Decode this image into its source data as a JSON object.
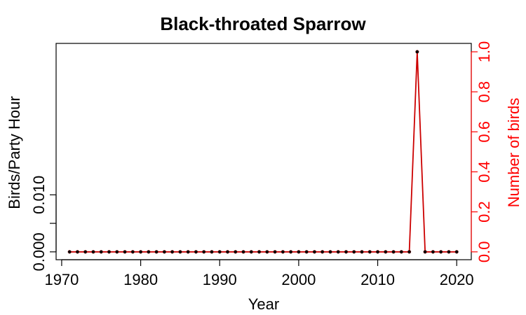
{
  "chart_data": {
    "type": "line",
    "title": "Black-throated Sparrow",
    "xlabel": "Year",
    "ylabel_left": "Birds/Party Hour",
    "ylabel_right": "Number of birds",
    "xlim": [
      1971,
      2020
    ],
    "xticks": [
      1970,
      1980,
      1990,
      2000,
      2010,
      2020
    ],
    "ylim_left": [
      0,
      0.0135
    ],
    "yticks_left": [
      0.0,
      0.005,
      0.01
    ],
    "ytick_labels_left": [
      "0.000",
      "",
      "0.010"
    ],
    "ylim_right": [
      0,
      1.0
    ],
    "yticks_right": [
      0.0,
      0.2,
      0.4,
      0.6,
      0.8,
      1.0
    ],
    "ytick_labels_right": [
      "0.0",
      "0.2",
      "0.4",
      "0.6",
      "0.8",
      "1.0"
    ],
    "grid": false,
    "colors": {
      "left_axis": "#000000",
      "right_axis": "#ff0000",
      "line": "#cc0000",
      "points": "#000000"
    },
    "series": [
      {
        "axis": "right",
        "x": [
          1971,
          1972,
          1973,
          1974,
          1975,
          1976,
          1977,
          1978,
          1979,
          1980,
          1981,
          1982,
          1983,
          1984,
          1985,
          1986,
          1987,
          1988,
          1989,
          1990,
          1991,
          1992,
          1993,
          1994,
          1995,
          1996,
          1997,
          1998,
          1999,
          2000,
          2001,
          2002,
          2003,
          2004,
          2005,
          2006,
          2007,
          2008,
          2009,
          2010,
          2011,
          2012,
          2013,
          2014,
          2015,
          2016,
          2017,
          2018,
          2019,
          2020
        ],
        "y": [
          0,
          0,
          0,
          0,
          0,
          0,
          0,
          0,
          0,
          0,
          0,
          0,
          0,
          0,
          0,
          0,
          0,
          0,
          0,
          0,
          0,
          0,
          0,
          0,
          0,
          0,
          0,
          0,
          0,
          0,
          0,
          0,
          0,
          0,
          0,
          0,
          0,
          0,
          0,
          0,
          0,
          0,
          0,
          0,
          1,
          0,
          0,
          0,
          0,
          0
        ]
      }
    ]
  }
}
